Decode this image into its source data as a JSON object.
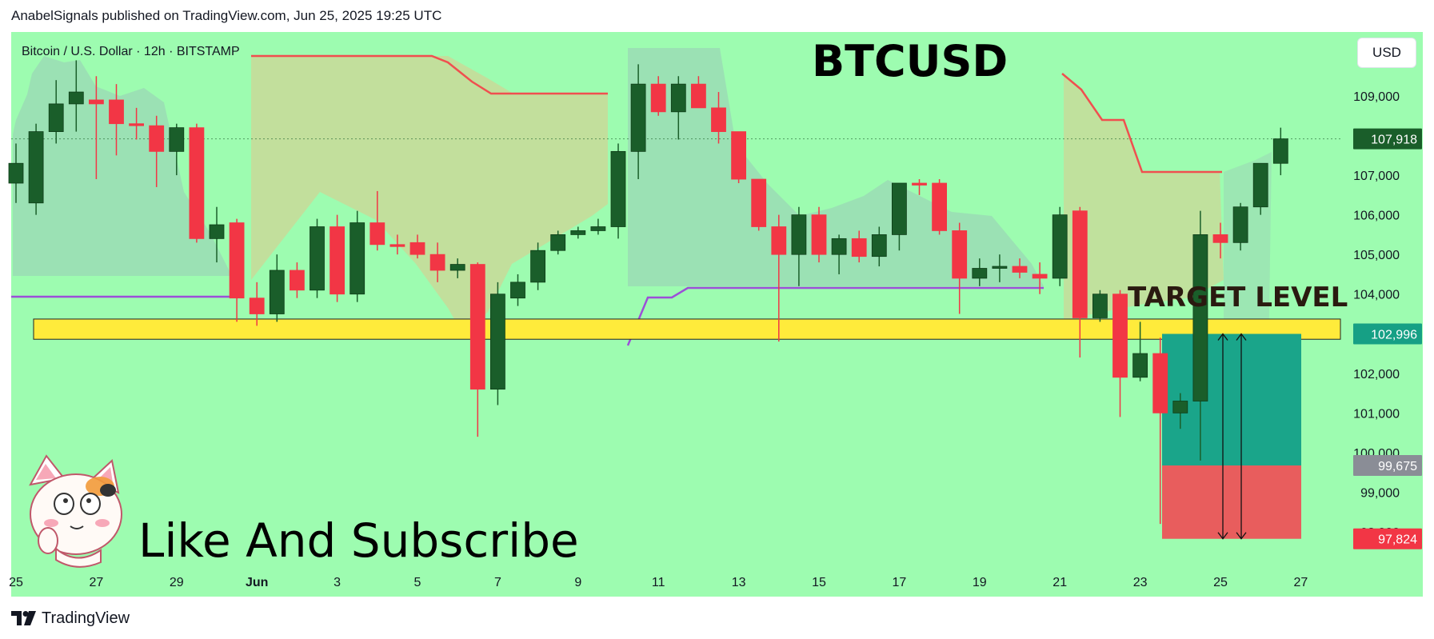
{
  "header": {
    "text": "AnabelSignals published on TradingView.com, Jun 25, 2025 19:25 UTC"
  },
  "footer": {
    "brand": "TradingView"
  },
  "currency_button": "USD",
  "chart_data": {
    "type": "candlestick",
    "symbol_line": "Bitcoin / U.S. Dollar · 12h · BITSTAMP",
    "title": "BTCUSD",
    "annotations": {
      "target_label": "TARGET LEVEL",
      "promo_text": "Like And Subscribe"
    },
    "colors": {
      "background": "#9dfcb0",
      "up": "#1a5e2a",
      "down": "#f23645",
      "resistance_line": "#f04f4f",
      "support_line": "#9c4fd8",
      "cloud": "#c7dc9a",
      "target_zone": "#ffeb3b",
      "profit_zone": "#1aa58a",
      "loss_zone": "#e85d5d"
    },
    "y_axis": {
      "min": 97000,
      "max": 109900,
      "ticks": [
        "109,000",
        "107,000",
        "106,000",
        "105,000",
        "104,000",
        "102,000",
        "101,000",
        "100,000",
        "99,000",
        "98,000"
      ],
      "tick_values": [
        109000,
        107000,
        106000,
        105000,
        104000,
        102000,
        101000,
        100000,
        99000,
        98000
      ],
      "price_labels": [
        {
          "text": "107,918",
          "value": 107918,
          "color": "#1a5e2a"
        },
        {
          "text": "102,996",
          "value": 102996,
          "color": "#16a085"
        },
        {
          "text": "99,675",
          "value": 99675,
          "color": "#8a8d96"
        },
        {
          "text": "97,824",
          "value": 97824,
          "color": "#f23645"
        }
      ]
    },
    "x_axis": {
      "ticks": [
        "25",
        "27",
        "29",
        "Jun",
        "3",
        "5",
        "7",
        "9",
        "11",
        "13",
        "15",
        "17",
        "19",
        "21",
        "23",
        "25",
        "27"
      ]
    },
    "target_zone": {
      "low": 102860,
      "high": 103370
    },
    "position": {
      "entry": 102996,
      "stop": 97824,
      "target": 99675
    },
    "candles": [
      {
        "o": 106800,
        "h": 107800,
        "l": 106300,
        "c": 107300
      },
      {
        "o": 106300,
        "h": 108300,
        "l": 106000,
        "c": 108100
      },
      {
        "o": 108100,
        "h": 109400,
        "l": 107800,
        "c": 108800
      },
      {
        "o": 108800,
        "h": 109900,
        "l": 108100,
        "c": 109100
      },
      {
        "o": 108900,
        "h": 109500,
        "l": 106900,
        "c": 108800
      },
      {
        "o": 108900,
        "h": 109300,
        "l": 107500,
        "c": 108300
      },
      {
        "o": 108300,
        "h": 108700,
        "l": 107900,
        "c": 108250
      },
      {
        "o": 108250,
        "h": 108500,
        "l": 106700,
        "c": 107600
      },
      {
        "o": 107600,
        "h": 108300,
        "l": 107000,
        "c": 108200
      },
      {
        "o": 108200,
        "h": 108300,
        "l": 105300,
        "c": 105400
      },
      {
        "o": 105400,
        "h": 106200,
        "l": 104800,
        "c": 105750
      },
      {
        "o": 105800,
        "h": 105900,
        "l": 103300,
        "c": 103900
      },
      {
        "o": 103900,
        "h": 104300,
        "l": 103200,
        "c": 103500
      },
      {
        "o": 103500,
        "h": 105000,
        "l": 103300,
        "c": 104600
      },
      {
        "o": 104600,
        "h": 104800,
        "l": 103900,
        "c": 104100
      },
      {
        "o": 104100,
        "h": 105900,
        "l": 103900,
        "c": 105700
      },
      {
        "o": 105700,
        "h": 106000,
        "l": 103800,
        "c": 104000
      },
      {
        "o": 104000,
        "h": 106100,
        "l": 103800,
        "c": 105800
      },
      {
        "o": 105800,
        "h": 106600,
        "l": 105100,
        "c": 105250
      },
      {
        "o": 105250,
        "h": 105500,
        "l": 105000,
        "c": 105200
      },
      {
        "o": 105300,
        "h": 105500,
        "l": 104900,
        "c": 105000
      },
      {
        "o": 105000,
        "h": 105300,
        "l": 104300,
        "c": 104600
      },
      {
        "o": 104600,
        "h": 104900,
        "l": 104400,
        "c": 104750
      },
      {
        "o": 104750,
        "h": 104800,
        "l": 100400,
        "c": 101600
      },
      {
        "o": 101600,
        "h": 104300,
        "l": 101200,
        "c": 104000
      },
      {
        "o": 103900,
        "h": 104500,
        "l": 103700,
        "c": 104300
      },
      {
        "o": 104300,
        "h": 105300,
        "l": 104100,
        "c": 105100
      },
      {
        "o": 105100,
        "h": 105600,
        "l": 105000,
        "c": 105500
      },
      {
        "o": 105500,
        "h": 105700,
        "l": 105400,
        "c": 105600
      },
      {
        "o": 105600,
        "h": 105900,
        "l": 105500,
        "c": 105700
      },
      {
        "o": 105700,
        "h": 107800,
        "l": 105400,
        "c": 107600
      },
      {
        "o": 107600,
        "h": 109800,
        "l": 106900,
        "c": 109300
      },
      {
        "o": 109300,
        "h": 109500,
        "l": 108500,
        "c": 108600
      },
      {
        "o": 108600,
        "h": 109500,
        "l": 107900,
        "c": 109300
      },
      {
        "o": 109300,
        "h": 109500,
        "l": 108700,
        "c": 108700
      },
      {
        "o": 108700,
        "h": 109100,
        "l": 107800,
        "c": 108100
      },
      {
        "o": 108100,
        "h": 108100,
        "l": 106800,
        "c": 106900
      },
      {
        "o": 106900,
        "h": 106900,
        "l": 105600,
        "c": 105700
      },
      {
        "o": 105700,
        "h": 106000,
        "l": 102800,
        "c": 105000
      },
      {
        "o": 105000,
        "h": 106200,
        "l": 104200,
        "c": 106000
      },
      {
        "o": 106000,
        "h": 106200,
        "l": 104800,
        "c": 105000
      },
      {
        "o": 105000,
        "h": 105500,
        "l": 104500,
        "c": 105400
      },
      {
        "o": 105400,
        "h": 105600,
        "l": 104800,
        "c": 104950
      },
      {
        "o": 104950,
        "h": 105700,
        "l": 104700,
        "c": 105500
      },
      {
        "o": 105500,
        "h": 106800,
        "l": 105100,
        "c": 106800
      },
      {
        "o": 106800,
        "h": 106900,
        "l": 106500,
        "c": 106750
      },
      {
        "o": 106800,
        "h": 106900,
        "l": 105500,
        "c": 105600
      },
      {
        "o": 105600,
        "h": 105800,
        "l": 103500,
        "c": 104400
      },
      {
        "o": 104400,
        "h": 104900,
        "l": 104200,
        "c": 104650
      },
      {
        "o": 104650,
        "h": 105000,
        "l": 104300,
        "c": 104700
      },
      {
        "o": 104700,
        "h": 104900,
        "l": 104400,
        "c": 104550
      },
      {
        "o": 104500,
        "h": 104800,
        "l": 104000,
        "c": 104400
      },
      {
        "o": 104400,
        "h": 106200,
        "l": 104200,
        "c": 106000
      },
      {
        "o": 106100,
        "h": 106200,
        "l": 102400,
        "c": 103400
      },
      {
        "o": 103400,
        "h": 104100,
        "l": 103300,
        "c": 104000
      },
      {
        "o": 104000,
        "h": 104100,
        "l": 100900,
        "c": 101900
      },
      {
        "o": 101900,
        "h": 103300,
        "l": 101800,
        "c": 102500
      },
      {
        "o": 102500,
        "h": 102900,
        "l": 98200,
        "c": 101000
      },
      {
        "o": 101000,
        "h": 101500,
        "l": 100600,
        "c": 101300
      },
      {
        "o": 101300,
        "h": 106100,
        "l": 99800,
        "c": 105500
      },
      {
        "o": 105500,
        "h": 105800,
        "l": 104900,
        "c": 105300
      },
      {
        "o": 105300,
        "h": 106300,
        "l": 105100,
        "c": 106200
      },
      {
        "o": 106200,
        "h": 107200,
        "l": 106000,
        "c": 107300
      },
      {
        "o": 107300,
        "h": 108200,
        "l": 107000,
        "c": 107918
      }
    ]
  }
}
